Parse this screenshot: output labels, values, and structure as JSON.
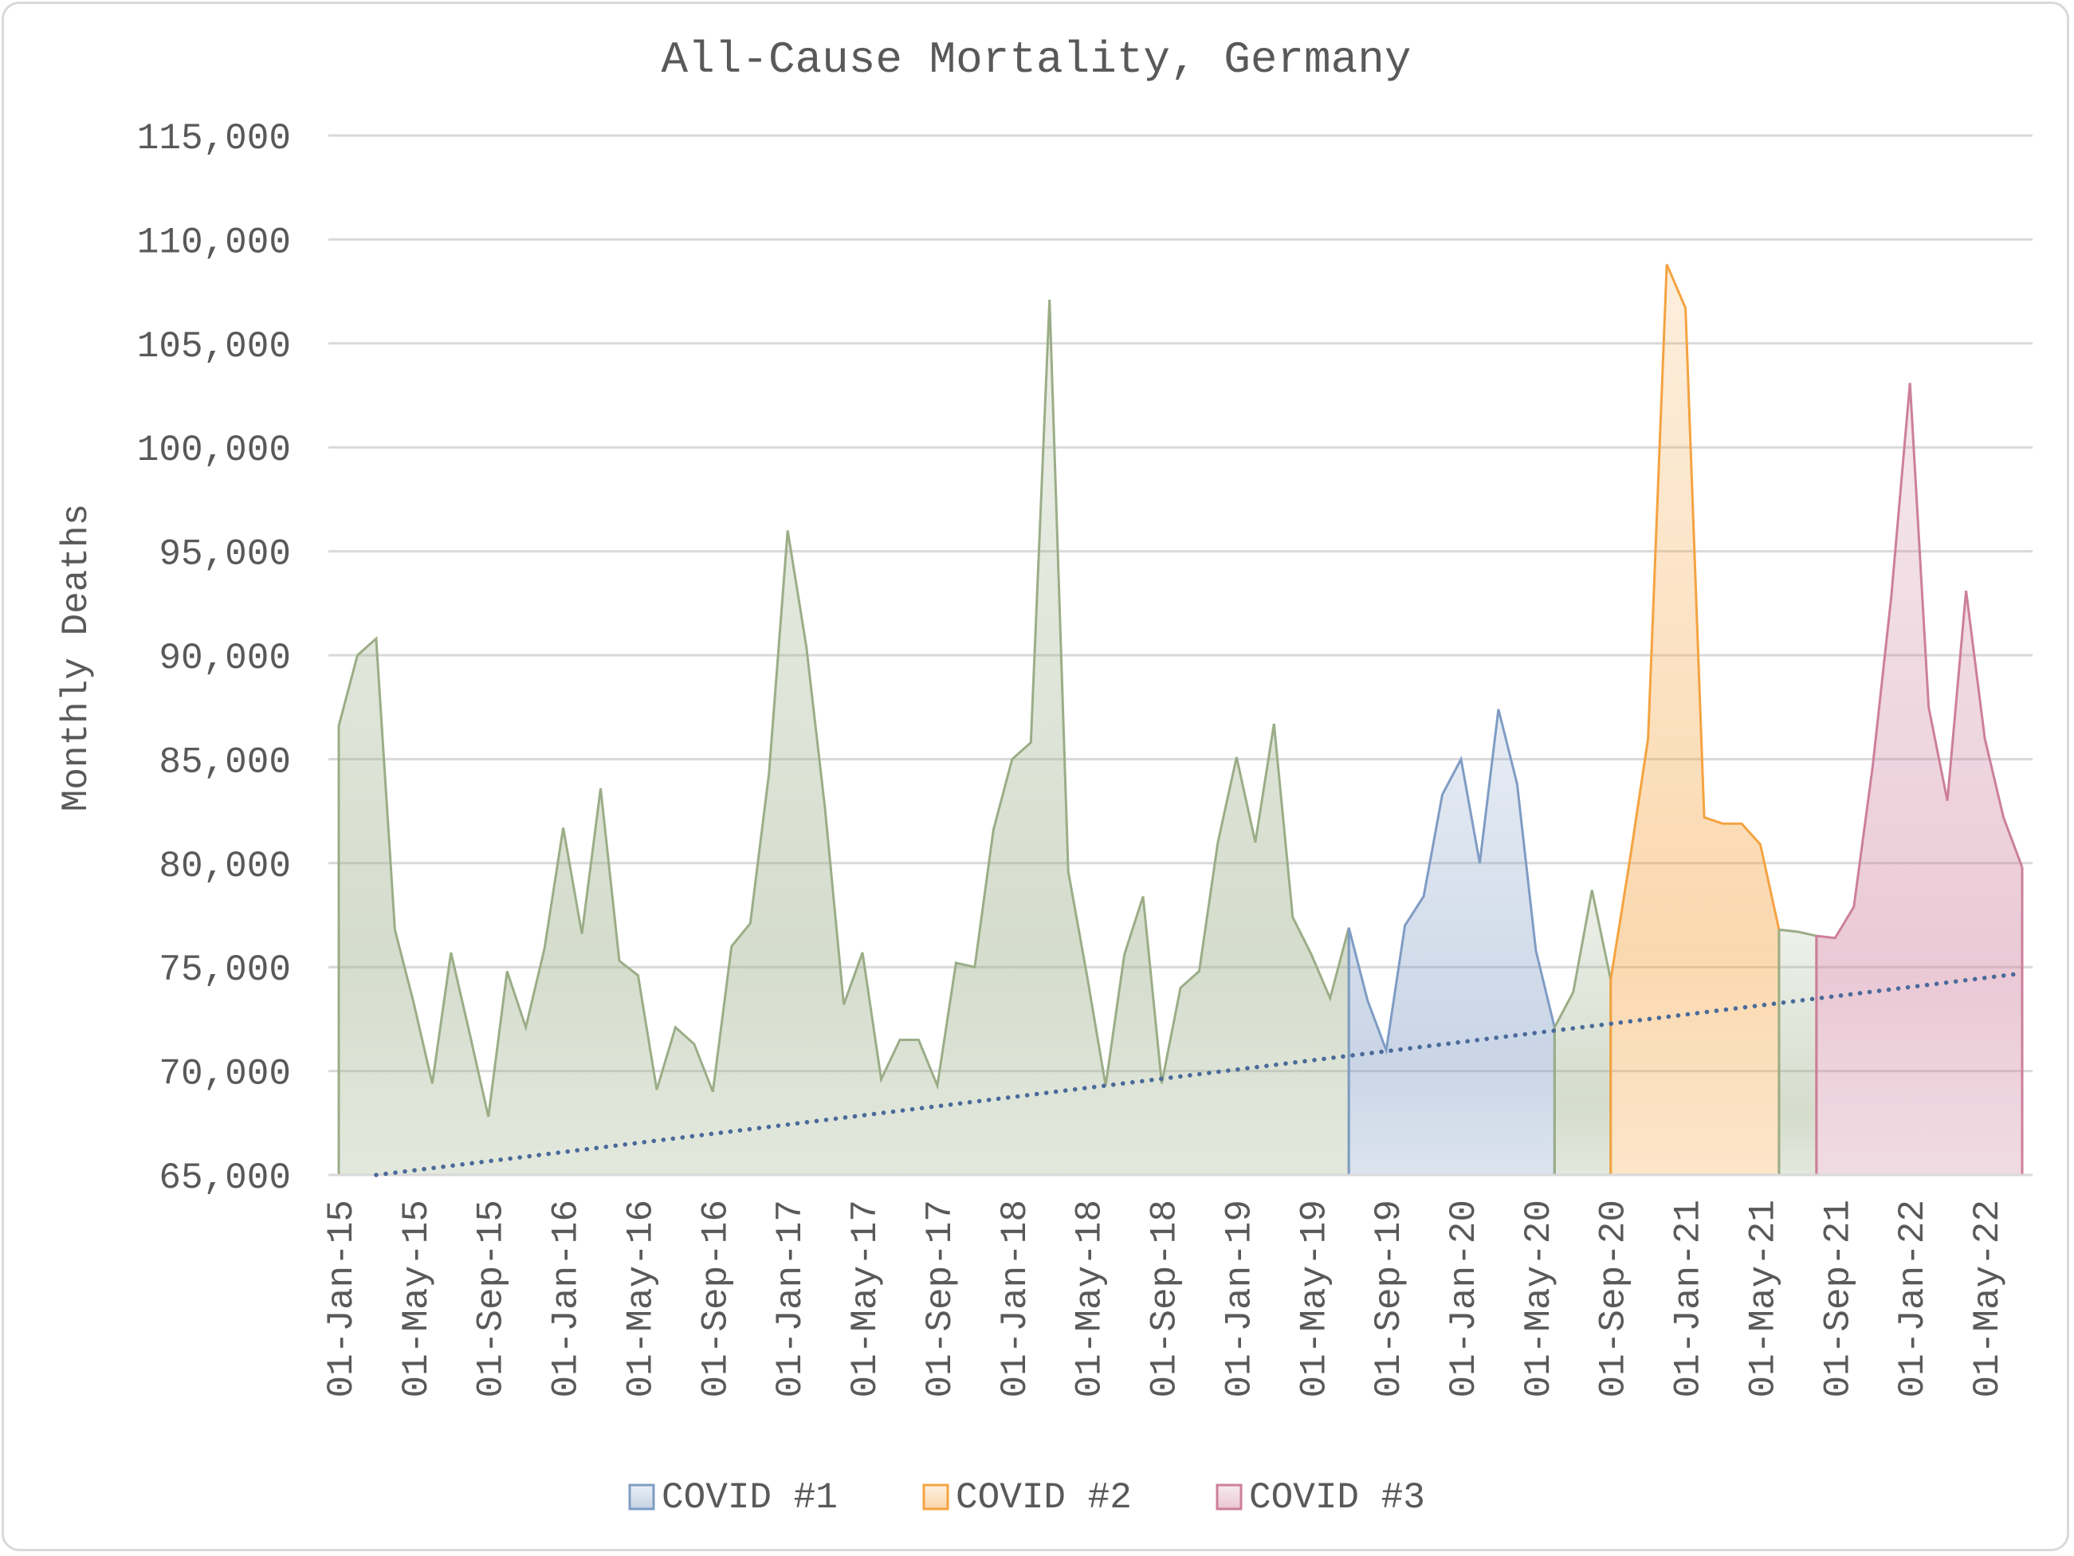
{
  "chart_data": {
    "type": "area",
    "title": "All-Cause Mortality, Germany",
    "xlabel": "",
    "ylabel": "Monthly Deaths",
    "ylim": [
      65000,
      115000
    ],
    "y_ticks": [
      "65,000",
      "70,000",
      "75,000",
      "80,000",
      "85,000",
      "90,000",
      "95,000",
      "100,000",
      "105,000",
      "110,000",
      "115,000"
    ],
    "x_ticks": [
      "01-Jan-15",
      "01-May-15",
      "01-Sep-15",
      "01-Jan-16",
      "01-May-16",
      "01-Sep-16",
      "01-Jan-17",
      "01-May-17",
      "01-Sep-17",
      "01-Jan-18",
      "01-May-18",
      "01-Sep-18",
      "01-Jan-19",
      "01-May-19",
      "01-Sep-19",
      "01-Jan-20",
      "01-May-20",
      "01-Sep-20",
      "01-Jan-21",
      "01-May-21",
      "01-Sep-21",
      "01-Jan-22",
      "01-May-22"
    ],
    "grid": true,
    "legend_position": "bottom",
    "start_month": "Jan-15",
    "values": [
      86600,
      90000,
      90800,
      76800,
      73300,
      69400,
      75700,
      71800,
      67800,
      74800,
      72100,
      75900,
      81700,
      76600,
      83600,
      75300,
      74600,
      69100,
      72100,
      71300,
      69000,
      76000,
      77100,
      84300,
      96000,
      90400,
      82600,
      73200,
      75700,
      69600,
      71500,
      71500,
      69300,
      75200,
      75000,
      81600,
      85000,
      85800,
      107100,
      79600,
      74600,
      69300,
      75600,
      78400,
      69400,
      74000,
      74800,
      81000,
      85100,
      81000,
      86700,
      77400,
      75600,
      73500,
      76900,
      73400,
      71000,
      77000,
      78400,
      83300,
      85000,
      80000,
      87400,
      83800,
      75800,
      72100,
      73800,
      78700,
      74400,
      80000,
      86000,
      108800,
      106700,
      82200,
      81900,
      81900,
      80900,
      76800,
      76700,
      76500,
      76400,
      77900,
      84600,
      92800,
      103100,
      87500,
      83000,
      93100,
      86000,
      82200,
      79800
    ],
    "segments": [
      {
        "name": "",
        "start": 0,
        "end": 54,
        "color": "#9bad87"
      },
      {
        "name": "COVID #1",
        "start": 54,
        "end": 65,
        "color": "#7f9cc4"
      },
      {
        "name": "",
        "start": 65,
        "end": 68,
        "color": "#9bad87"
      },
      {
        "name": "COVID #2",
        "start": 68,
        "end": 77,
        "color": "#f4a341"
      },
      {
        "name": "",
        "start": 77,
        "end": 79,
        "color": "#9bad87"
      },
      {
        "name": "COVID #3",
        "start": 79,
        "end": 90,
        "color": "#cc7f9b"
      }
    ],
    "trend": {
      "start_index": 2,
      "start_value": 65000,
      "end_index": 90,
      "end_value": 74700,
      "color": "#4a6a9a"
    },
    "legend": [
      {
        "label": "COVID #1",
        "color": "#7f9cc4"
      },
      {
        "label": "COVID #2",
        "color": "#f4a341"
      },
      {
        "label": "COVID #3",
        "color": "#cc7f9b"
      }
    ]
  }
}
